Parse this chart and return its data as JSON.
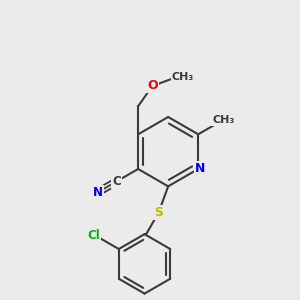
{
  "background_color": "#ebebeb",
  "bond_color": "#3a3a3a",
  "atom_colors": {
    "N": "#0000ee",
    "O": "#ee0000",
    "S": "#bbbb00",
    "Cl": "#00bb00",
    "C": "#3a3a3a"
  },
  "figsize": [
    3.0,
    3.0
  ],
  "dpi": 100
}
